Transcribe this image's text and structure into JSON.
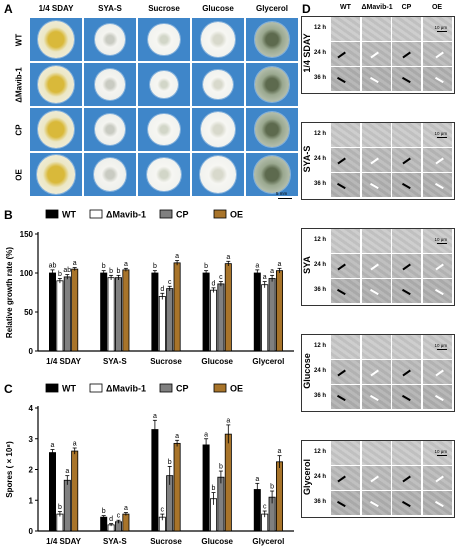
{
  "panel_letters": {
    "a": "A",
    "b": "B",
    "c": "C",
    "d": "D"
  },
  "plates": {
    "columns": [
      "1/4 SDAY",
      "SYA-S",
      "Sucrose",
      "Glucose",
      "Glycerol"
    ],
    "rows": [
      "WT",
      "ΔMavib-1",
      "CP",
      "OE"
    ],
    "scale_label": "5 mm"
  },
  "micro": {
    "columns": [
      "WT",
      "ΔMavib-1",
      "CP",
      "OE"
    ],
    "groups": [
      "1/4 SDAY",
      "SYA-S",
      "SYA",
      "Glucose",
      "Glycerol"
    ],
    "times": [
      "12 h",
      "24 h",
      "36 h"
    ],
    "scale_label": "10 μm"
  },
  "chart_data": [
    {
      "type": "bar",
      "categories": [
        "1/4 SDAY",
        "SYA-S",
        "Sucrose",
        "Glucose",
        "Glycerol"
      ],
      "series": [
        {
          "name": "WT",
          "values": [
            100,
            100,
            100,
            100,
            100
          ],
          "errors": [
            4,
            3,
            3,
            3,
            4
          ],
          "letters": [
            "ab",
            "b",
            "b",
            "b",
            "a"
          ],
          "color": "#000000"
        },
        {
          "name": "ΔMavib-1",
          "values": [
            90,
            94,
            70,
            78,
            85
          ],
          "errors": [
            3,
            3,
            4,
            3,
            4
          ],
          "letters": [
            "b",
            "b",
            "d",
            "d",
            "a"
          ],
          "color": "#ffffff"
        },
        {
          "name": "CP",
          "values": [
            95,
            94,
            80,
            86,
            93
          ],
          "errors": [
            3,
            3,
            3,
            3,
            4
          ],
          "letters": [
            "ab",
            "b",
            "c",
            "c",
            "a"
          ],
          "color": "#808080"
        },
        {
          "name": "OE",
          "values": [
            105,
            104,
            113,
            112,
            103
          ],
          "errors": [
            2,
            2,
            3,
            3,
            3
          ],
          "letters": [
            "a",
            "a",
            "a",
            "a",
            "a"
          ],
          "color": "#a8742a"
        }
      ],
      "ylabel": "Relative growth rate (%)",
      "ylim": [
        0,
        150
      ],
      "yticks": [
        "0",
        "50",
        "100",
        "150"
      ]
    },
    {
      "type": "bar",
      "categories": [
        "1/4 SDAY",
        "SYA-S",
        "Sucrose",
        "Glucose",
        "Glycerol"
      ],
      "series": [
        {
          "name": "WT",
          "values": [
            2.55,
            0.45,
            3.3,
            2.8,
            1.35
          ],
          "errors": [
            0.1,
            0.05,
            0.3,
            0.2,
            0.2
          ],
          "letters": [
            "a",
            "b",
            "a",
            "a",
            "a"
          ],
          "color": "#000000"
        },
        {
          "name": "ΔMavib-1",
          "values": [
            0.55,
            0.2,
            0.45,
            1.05,
            0.55
          ],
          "errors": [
            0.08,
            0.04,
            0.1,
            0.2,
            0.1
          ],
          "letters": [
            "b",
            "d",
            "c",
            "b",
            "c"
          ],
          "color": "#ffffff"
        },
        {
          "name": "CP",
          "values": [
            1.65,
            0.3,
            1.8,
            1.75,
            1.1
          ],
          "errors": [
            0.15,
            0.05,
            0.3,
            0.2,
            0.2
          ],
          "letters": [
            "a",
            "c",
            "b",
            "b",
            "b"
          ],
          "color": "#808080"
        },
        {
          "name": "OE",
          "values": [
            2.6,
            0.55,
            2.85,
            3.15,
            2.25
          ],
          "errors": [
            0.1,
            0.05,
            0.1,
            0.3,
            0.2
          ],
          "letters": [
            "a",
            "a",
            "a",
            "a",
            "a"
          ],
          "color": "#a8742a"
        }
      ],
      "ylabel": "Spores ( × 10⁸)",
      "ylim": [
        0,
        4
      ],
      "yticks": [
        "0",
        "1",
        "2",
        "3",
        "4"
      ]
    }
  ]
}
